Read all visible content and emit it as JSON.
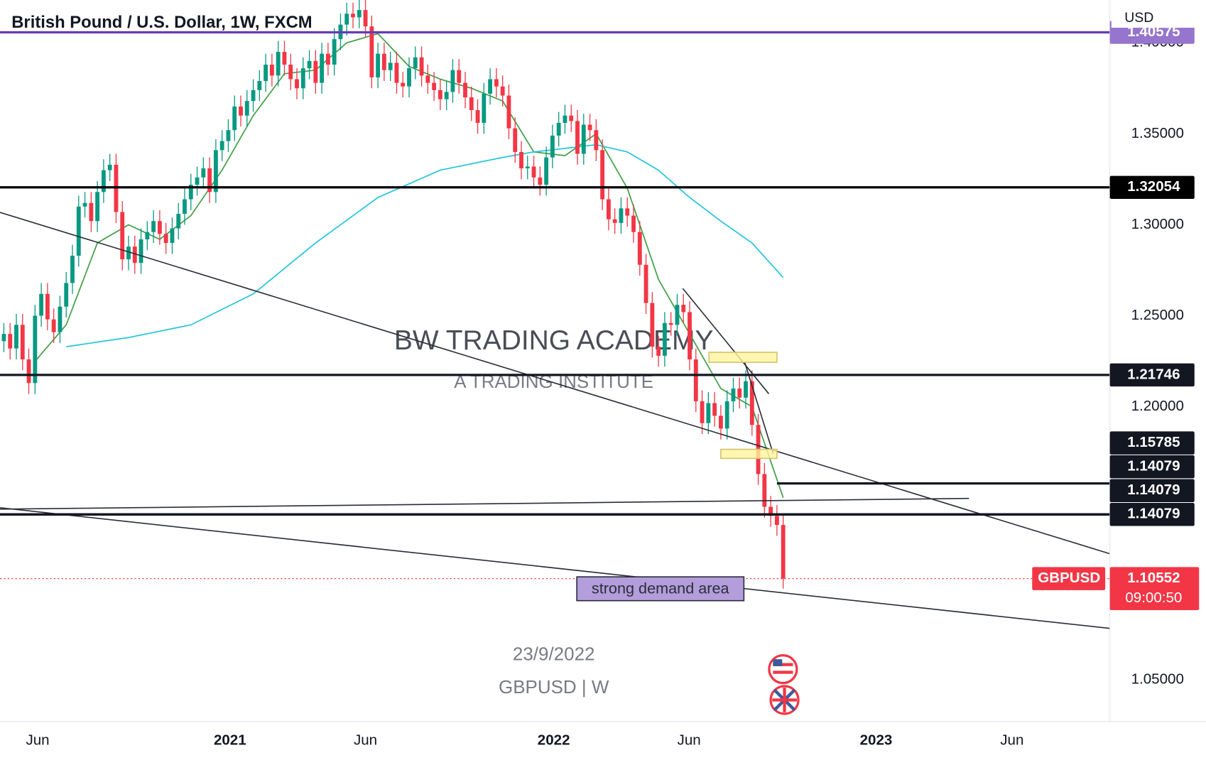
{
  "chart_data": {
    "type": "candlestick",
    "title": "British Pound / U.S. Dollar, 1W, FXCM",
    "currency": "USD",
    "watermark": "BW TRADING ACADEMY",
    "watermark_subtitle": "A TRADING INSTITUTE",
    "date_text": "23/9/2022",
    "symbol_text": "GBPUSD | W",
    "symbol": "GBPUSD",
    "countdown": "09:00:50",
    "up_color": "#089981",
    "down_color": "#f23645",
    "open": [
      1.236,
      1.24,
      1.232,
      1.245,
      1.226,
      1.213,
      1.25,
      1.262,
      1.248,
      1.241,
      1.255,
      1.268,
      1.283,
      1.31,
      1.312,
      1.302,
      1.318,
      1.33,
      1.333,
      1.307,
      1.281,
      1.288,
      1.279,
      1.292,
      1.296,
      1.302,
      1.295,
      1.29,
      1.298,
      1.306,
      1.314,
      1.322,
      1.326,
      1.331,
      1.318,
      1.341,
      1.346,
      1.352,
      1.365,
      1.36,
      1.368,
      1.374,
      1.379,
      1.388,
      1.382,
      1.395,
      1.388,
      1.38,
      1.375,
      1.386,
      1.39,
      1.378,
      1.394,
      1.388,
      1.402,
      1.41,
      1.416,
      1.414,
      1.418,
      1.409,
      1.381,
      1.394,
      1.385,
      1.389,
      1.378,
      1.376,
      1.386,
      1.392,
      1.382,
      1.378,
      1.374,
      1.369,
      1.373,
      1.385,
      1.378,
      1.37,
      1.363,
      1.356,
      1.372,
      1.38,
      1.376,
      1.371,
      1.353,
      1.34,
      1.331,
      1.332,
      1.326,
      1.322,
      1.337,
      1.349,
      1.356,
      1.36,
      1.357,
      1.339,
      1.355,
      1.352,
      1.341,
      1.314,
      1.303,
      1.301,
      1.309,
      1.305,
      1.296,
      1.278,
      1.257,
      1.233,
      1.228,
      1.246,
      1.245,
      1.256,
      1.252,
      1.226,
      1.203,
      1.191,
      1.202,
      1.195,
      1.188,
      1.203,
      1.21,
      1.205,
      1.214,
      1.19,
      1.163,
      1.145,
      1.14,
      1.135
    ],
    "high": [
      1.246,
      1.246,
      1.251,
      1.251,
      1.232,
      1.256,
      1.268,
      1.268,
      1.254,
      1.261,
      1.274,
      1.289,
      1.316,
      1.318,
      1.318,
      1.324,
      1.336,
      1.339,
      1.339,
      1.313,
      1.294,
      1.294,
      1.298,
      1.302,
      1.308,
      1.308,
      1.301,
      1.304,
      1.312,
      1.32,
      1.328,
      1.332,
      1.337,
      1.337,
      1.347,
      1.352,
      1.358,
      1.371,
      1.371,
      1.374,
      1.38,
      1.385,
      1.394,
      1.394,
      1.401,
      1.401,
      1.394,
      1.386,
      1.392,
      1.396,
      1.396,
      1.4,
      1.4,
      1.408,
      1.416,
      1.422,
      1.422,
      1.424,
      1.424,
      1.415,
      1.4,
      1.4,
      1.395,
      1.395,
      1.384,
      1.392,
      1.398,
      1.398,
      1.388,
      1.384,
      1.38,
      1.379,
      1.391,
      1.391,
      1.384,
      1.376,
      1.369,
      1.378,
      1.386,
      1.386,
      1.382,
      1.377,
      1.359,
      1.346,
      1.338,
      1.338,
      1.332,
      1.343,
      1.355,
      1.362,
      1.366,
      1.366,
      1.363,
      1.361,
      1.361,
      1.358,
      1.347,
      1.32,
      1.309,
      1.315,
      1.315,
      1.311,
      1.302,
      1.284,
      1.263,
      1.239,
      1.252,
      1.252,
      1.262,
      1.262,
      1.258,
      1.232,
      1.209,
      1.208,
      1.208,
      1.201,
      1.209,
      1.216,
      1.216,
      1.22,
      1.22,
      1.196,
      1.169,
      1.151,
      1.146,
      1.141
    ],
    "low": [
      1.23,
      1.226,
      1.226,
      1.22,
      1.207,
      1.207,
      1.244,
      1.242,
      1.235,
      1.235,
      1.249,
      1.262,
      1.277,
      1.304,
      1.296,
      1.296,
      1.312,
      1.324,
      1.301,
      1.275,
      1.275,
      1.273,
      1.273,
      1.286,
      1.29,
      1.289,
      1.284,
      1.284,
      1.292,
      1.3,
      1.308,
      1.316,
      1.32,
      1.312,
      1.312,
      1.335,
      1.34,
      1.346,
      1.354,
      1.354,
      1.362,
      1.368,
      1.373,
      1.376,
      1.376,
      1.382,
      1.374,
      1.369,
      1.369,
      1.38,
      1.372,
      1.372,
      1.382,
      1.382,
      1.396,
      1.404,
      1.408,
      1.408,
      1.403,
      1.375,
      1.375,
      1.379,
      1.379,
      1.372,
      1.37,
      1.37,
      1.38,
      1.376,
      1.372,
      1.368,
      1.363,
      1.363,
      1.367,
      1.372,
      1.364,
      1.357,
      1.35,
      1.35,
      1.366,
      1.37,
      1.365,
      1.347,
      1.334,
      1.325,
      1.325,
      1.32,
      1.316,
      1.316,
      1.331,
      1.343,
      1.35,
      1.351,
      1.333,
      1.333,
      1.346,
      1.335,
      1.308,
      1.297,
      1.295,
      1.295,
      1.299,
      1.29,
      1.272,
      1.251,
      1.227,
      1.222,
      1.222,
      1.239,
      1.239,
      1.246,
      1.22,
      1.197,
      1.185,
      1.185,
      1.189,
      1.182,
      1.182,
      1.197,
      1.199,
      1.199,
      1.184,
      1.157,
      1.139,
      1.134,
      1.129,
      1.1
    ],
    "close": [
      1.24,
      1.232,
      1.245,
      1.226,
      1.213,
      1.25,
      1.262,
      1.248,
      1.241,
      1.255,
      1.268,
      1.283,
      1.31,
      1.312,
      1.302,
      1.318,
      1.33,
      1.333,
      1.307,
      1.281,
      1.288,
      1.279,
      1.292,
      1.296,
      1.302,
      1.295,
      1.29,
      1.298,
      1.306,
      1.314,
      1.322,
      1.326,
      1.331,
      1.318,
      1.341,
      1.346,
      1.352,
      1.365,
      1.36,
      1.368,
      1.374,
      1.379,
      1.388,
      1.382,
      1.395,
      1.388,
      1.38,
      1.375,
      1.386,
      1.39,
      1.378,
      1.394,
      1.388,
      1.402,
      1.41,
      1.416,
      1.414,
      1.418,
      1.409,
      1.381,
      1.394,
      1.385,
      1.389,
      1.378,
      1.376,
      1.386,
      1.392,
      1.382,
      1.378,
      1.374,
      1.369,
      1.373,
      1.385,
      1.378,
      1.37,
      1.363,
      1.356,
      1.372,
      1.38,
      1.376,
      1.371,
      1.353,
      1.34,
      1.331,
      1.332,
      1.326,
      1.322,
      1.337,
      1.349,
      1.356,
      1.36,
      1.357,
      1.339,
      1.355,
      1.352,
      1.341,
      1.314,
      1.303,
      1.301,
      1.309,
      1.305,
      1.296,
      1.278,
      1.257,
      1.233,
      1.228,
      1.246,
      1.245,
      1.256,
      1.252,
      1.226,
      1.203,
      1.191,
      1.202,
      1.195,
      1.188,
      1.203,
      1.21,
      1.205,
      1.214,
      1.19,
      1.163,
      1.145,
      1.14,
      1.135,
      1.10552
    ],
    "series": [
      {
        "color": "#43a047",
        "x": [
          5,
          10,
          15,
          20,
          25,
          30,
          35,
          40,
          45,
          50,
          55,
          60,
          65,
          70,
          75,
          80,
          85,
          90,
          95,
          100,
          105,
          110,
          115,
          120,
          125
        ],
        "values": [
          1.225,
          1.245,
          1.29,
          1.3,
          1.292,
          1.305,
          1.33,
          1.36,
          1.383,
          1.385,
          1.4,
          1.405,
          1.387,
          1.38,
          1.375,
          1.368,
          1.34,
          1.338,
          1.35,
          1.32,
          1.27,
          1.24,
          1.21,
          1.2,
          1.15
        ]
      },
      {
        "color": "#26c6da",
        "x": [
          10,
          20,
          30,
          40,
          50,
          60,
          70,
          80,
          85,
          90,
          95,
          100,
          105,
          110,
          115,
          120,
          125
        ],
        "values": [
          1.233,
          1.238,
          1.245,
          1.262,
          1.29,
          1.315,
          1.33,
          1.337,
          1.34,
          1.342,
          1.344,
          1.34,
          1.33,
          1.315,
          1.302,
          1.29,
          1.271
        ]
      }
    ],
    "trend_lines": [
      {
        "x": [
          -0.62,
          177.4
        ],
        "values": [
          1.3068,
          1.1192
        ]
      },
      {
        "x": [
          -0.62,
          177.4
        ],
        "values": [
          1.1445,
          1.0782
        ]
      },
      {
        "x": [
          -0.62,
          154.8
        ],
        "values": [
          1.1437,
          1.1496
        ]
      },
      {
        "x": [
          108.9,
          122.7
        ],
        "values": [
          1.265,
          1.2071
        ]
      },
      {
        "x": [
          118.8,
          123.4
        ],
        "values": [
          1.2248,
          1.1741
        ]
      }
    ],
    "boxes": [
      {
        "x": [
          113.1,
          124.0
        ],
        "values": [
          1.2299,
          1.2244
        ],
        "color": "#fff59d"
      },
      {
        "x": [
          115.0,
          124.0
        ],
        "values": [
          1.1766,
          1.1716
        ],
        "color": "#fff59d"
      }
    ],
    "annotation": {
      "text": "strong demand area",
      "x": [
        91.9,
        118.7
      ],
      "values": [
        1.1065,
        1.0934
      ],
      "color": "#b39ddb"
    },
    "price_lines": [
      {
        "value": 1.40575,
        "color": "#673ab7"
      },
      {
        "value": 1.32054,
        "color": "#000000"
      },
      {
        "value": 1.21746,
        "color": "#131722"
      },
      {
        "value": 1.15785,
        "color": "#131722",
        "from": 124.0
      },
      {
        "value": 1.14079,
        "color": "#131722"
      },
      {
        "value": 1.14079,
        "color": "#131722"
      },
      {
        "value": 1.14079,
        "color": "#131722"
      }
    ],
    "xlim": [
      -0.62,
      177.4
    ],
    "xticks": [
      {
        "value": 5.42,
        "label": "Jun"
      },
      {
        "value": 36.27,
        "label": "2021"
      },
      {
        "value": 58.0,
        "label": "Jun"
      },
      {
        "value": 88.2,
        "label": "2022"
      },
      {
        "value": 109.9,
        "label": "Jun"
      },
      {
        "value": 139.9,
        "label": "2023"
      },
      {
        "value": 161.7,
        "label": "Jun"
      }
    ],
    "ylim": [
      1.027,
      1.4235
    ],
    "yticks": [
      {
        "value": 1.05,
        "label": "1.05000"
      },
      {
        "value": 1.2,
        "label": "1.20000"
      },
      {
        "value": 1.25,
        "label": "1.25000"
      },
      {
        "value": 1.3,
        "label": "1.30000"
      },
      {
        "value": 1.35,
        "label": "1.35000"
      },
      {
        "value": 1.4,
        "label": "1.40000"
      }
    ]
  }
}
